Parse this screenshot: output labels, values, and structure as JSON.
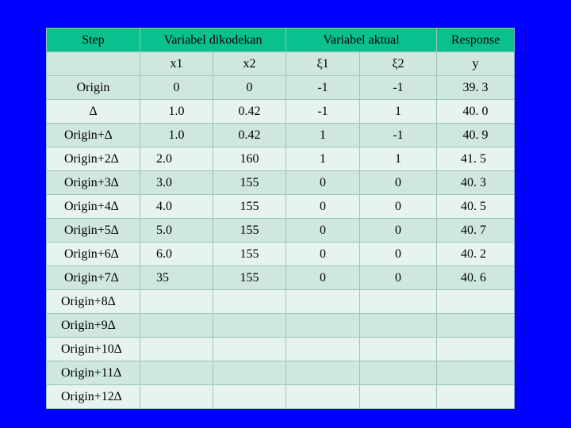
{
  "headers": {
    "step": "Step",
    "coded": "Variabel dikodekan",
    "actual": "Variabel aktual",
    "response": "Response"
  },
  "subheaders": [
    "x1",
    "x2",
    "ξ1",
    "ξ2",
    "y"
  ],
  "rows": [
    {
      "step": "Origin",
      "x1": "0",
      "x2": "0",
      "xi1": "-1",
      "xi2": "-1",
      "y": "39. 3"
    },
    {
      "step": "∆",
      "x1": "1.0",
      "x2": "0.42",
      "xi1": "-1",
      "xi2": "1",
      "y": "40. 0"
    },
    {
      "step": "Origin+∆",
      "x1": "1.0",
      "x2": "0.42",
      "xi1": "1",
      "xi2": "-1",
      "y": "40. 9"
    },
    {
      "step": "Origin+2∆",
      "x1": "2.0",
      "x2": "160",
      "xi1": "1",
      "xi2": "1",
      "y": "41. 5"
    },
    {
      "step": "Origin+3∆",
      "x1": "3.0",
      "x2": "155",
      "xi1": "0",
      "xi2": "0",
      "y": "40. 3"
    },
    {
      "step": "Origin+4∆",
      "x1": "4.0",
      "x2": "155",
      "xi1": "0",
      "xi2": "0",
      "y": "40. 5"
    },
    {
      "step": "Origin+5∆",
      "x1": "5.0",
      "x2": "155",
      "xi1": "0",
      "xi2": "0",
      "y": "40. 7"
    },
    {
      "step": "Origin+6∆",
      "x1": "6.0",
      "x2": "155",
      "xi1": "0",
      "xi2": "0",
      "y": "40. 2"
    },
    {
      "step": "Origin+7∆",
      "x1": "35",
      "x2": "155",
      "xi1": "0",
      "xi2": "0",
      "y": "40. 6"
    },
    {
      "step": "Origin+8∆",
      "x1": "",
      "x2": "",
      "xi1": "",
      "xi2": "",
      "y": ""
    },
    {
      "step": "Origin+9∆",
      "x1": "",
      "x2": "",
      "xi1": "",
      "xi2": "",
      "y": ""
    },
    {
      "step": "Origin+10∆",
      "x1": "",
      "x2": "",
      "xi1": "",
      "xi2": "",
      "y": ""
    },
    {
      "step": "Origin+11∆",
      "x1": "",
      "x2": "",
      "xi1": "",
      "xi2": "",
      "y": ""
    },
    {
      "step": "Origin+12∆",
      "x1": "",
      "x2": "",
      "xi1": "",
      "xi2": "",
      "y": ""
    }
  ],
  "colors": {
    "background": "#0000ff",
    "header": "#09c08e",
    "row_dark": "#cfe7e0",
    "row_light": "#e6f3ef",
    "border": "#9ac7b8"
  }
}
